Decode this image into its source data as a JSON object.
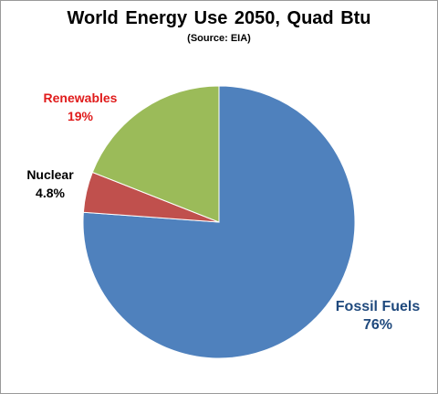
{
  "chart_data": {
    "type": "pie",
    "title": "World Energy Use  2050, Quad Btu",
    "subtitle": "(Source: EIA)",
    "categories": [
      "Fossil Fuels",
      "Nuclear",
      "Renewables"
    ],
    "values": [
      76,
      4.8,
      19
    ],
    "value_labels": [
      "76%",
      "4.8%",
      "19%"
    ],
    "start_angle": "top, clockwise",
    "slices": [
      {
        "name": "Fossil Fuels",
        "label": "76%",
        "value": 76,
        "color": "#4f81bd",
        "label_color": "#1f497d"
      },
      {
        "name": "Nuclear",
        "label": "4.8%",
        "value": 4.8,
        "color": "#c0504d",
        "label_color": "#000000"
      },
      {
        "name": "Renewables",
        "label": "19%",
        "value": 19,
        "color": "#9bbb59",
        "label_color": "#e01b1b"
      }
    ]
  }
}
